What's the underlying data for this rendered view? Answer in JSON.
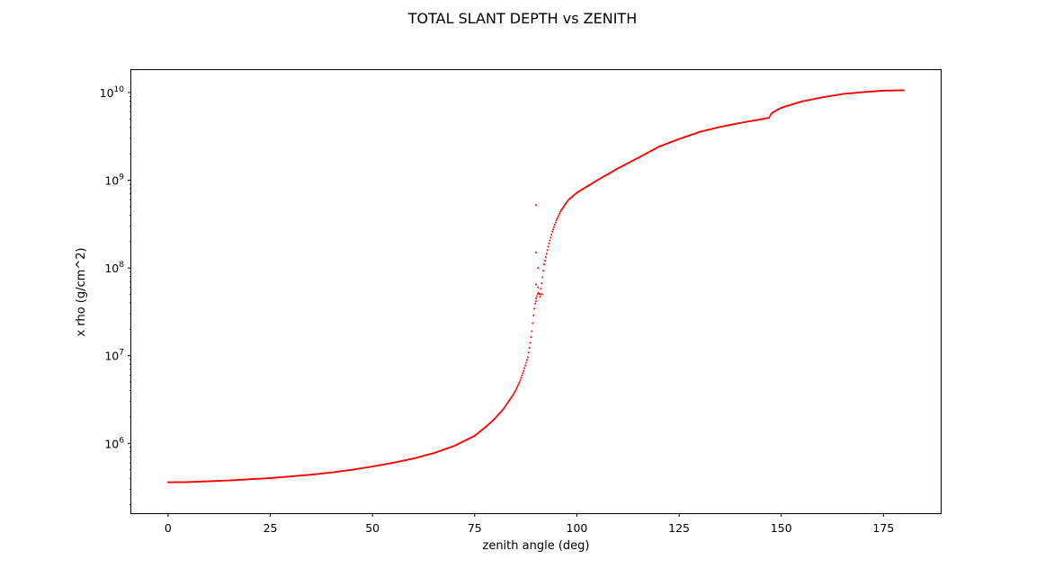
{
  "chart_data": {
    "type": "scatter",
    "title": "TOTAL SLANT DEPTH vs ZENITH",
    "xlabel": "zenith angle (deg)",
    "ylabel": "x rho (g/cm^2)",
    "xlim": [
      -9,
      189
    ],
    "ylim": [
      160000,
      18000000000
    ],
    "yscale": "log",
    "grid": false,
    "legend": "none",
    "marker_color": "#ff0000",
    "xticks": [
      {
        "value": 0,
        "label": "0"
      },
      {
        "value": 25,
        "label": "25"
      },
      {
        "value": 50,
        "label": "50"
      },
      {
        "value": 75,
        "label": "75"
      },
      {
        "value": 100,
        "label": "100"
      },
      {
        "value": 125,
        "label": "125"
      },
      {
        "value": 150,
        "label": "150"
      },
      {
        "value": 175,
        "label": "175"
      }
    ],
    "yticks": [
      {
        "value": 1000000,
        "base": "10",
        "exp": "6"
      },
      {
        "value": 10000000,
        "base": "10",
        "exp": "7"
      },
      {
        "value": 100000000,
        "base": "10",
        "exp": "8"
      },
      {
        "value": 1000000000,
        "base": "10",
        "exp": "9"
      },
      {
        "value": 10000000000,
        "base": "10",
        "exp": "10"
      }
    ],
    "series": [
      {
        "curve_points": [
          [
            0,
            360000
          ],
          [
            5,
            362000
          ],
          [
            10,
            370000
          ],
          [
            15,
            378000
          ],
          [
            20,
            390000
          ],
          [
            25,
            402000
          ],
          [
            30,
            420000
          ],
          [
            35,
            440000
          ],
          [
            40,
            466000
          ],
          [
            45,
            500000
          ],
          [
            50,
            545000
          ],
          [
            55,
            600000
          ],
          [
            60,
            672000
          ],
          [
            65,
            775000
          ],
          [
            70,
            935000
          ],
          [
            75,
            1220000
          ],
          [
            78,
            1580000
          ],
          [
            80,
            1930000
          ],
          [
            82,
            2450000
          ],
          [
            84,
            3350000
          ],
          [
            85,
            4000000
          ],
          [
            86,
            5000000
          ],
          [
            87,
            6700000
          ],
          [
            88,
            9600000
          ],
          [
            88.5,
            13000000
          ],
          [
            89,
            19000000
          ],
          [
            89.5,
            32000000
          ],
          [
            90,
            45000000
          ],
          [
            90.5,
            52000000
          ],
          [
            91,
            50000000
          ],
          [
            91.5,
            72000000
          ],
          [
            92,
            110000000
          ],
          [
            93,
            175000000
          ],
          [
            94,
            260000000
          ],
          [
            95,
            350000000
          ],
          [
            96,
            440000000
          ],
          [
            97,
            520000000
          ],
          [
            98,
            600000000
          ],
          [
            100,
            720000000
          ],
          [
            105,
            1000000000
          ],
          [
            110,
            1360000000
          ],
          [
            115,
            1800000000
          ],
          [
            120,
            2400000000
          ],
          [
            125,
            2950000000
          ],
          [
            130,
            3550000000
          ],
          [
            135,
            4050000000
          ],
          [
            140,
            4500000000
          ],
          [
            145,
            4950000000
          ],
          [
            147,
            5150000000
          ],
          [
            147.5,
            5700000000
          ],
          [
            148,
            5950000000
          ],
          [
            150,
            6700000000
          ],
          [
            155,
            7900000000
          ],
          [
            160,
            8800000000
          ],
          [
            165,
            9600000000
          ],
          [
            170,
            10100000000
          ],
          [
            175,
            10500000000
          ],
          [
            180,
            10600000000
          ]
        ],
        "outliers": [
          [
            90,
            520000000
          ],
          [
            90,
            150000000
          ],
          [
            90.5,
            100000000
          ],
          [
            90,
            65000000
          ],
          [
            90.5,
            60000000
          ],
          [
            91,
            47000000
          ],
          [
            91.5,
            50000000
          ],
          [
            90,
            42000000
          ]
        ]
      }
    ]
  }
}
